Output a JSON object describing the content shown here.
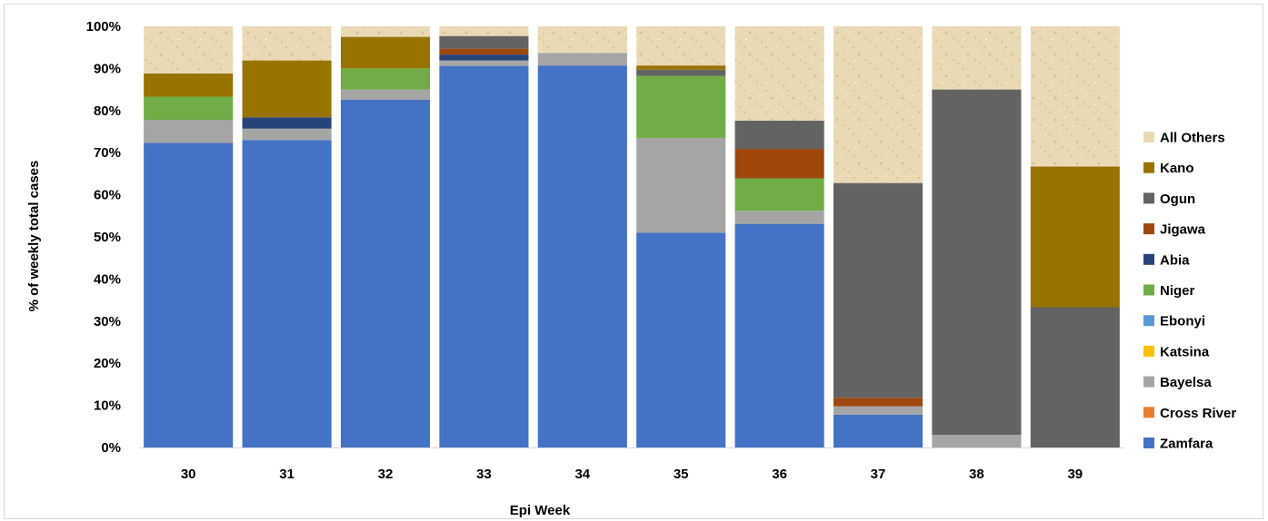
{
  "chart_data": {
    "type": "bar",
    "stacked": true,
    "percent_stacked": true,
    "xlabel": "Epi Week",
    "ylabel": "% of weekly total cases",
    "ylim": [
      0,
      100
    ],
    "y_ticks": [
      "0%",
      "10%",
      "20%",
      "30%",
      "40%",
      "50%",
      "60%",
      "70%",
      "80%",
      "90%",
      "100%"
    ],
    "categories": [
      "30",
      "31",
      "32",
      "33",
      "34",
      "35",
      "36",
      "37",
      "38",
      "39"
    ],
    "legend_position": "right",
    "grid": false,
    "series": [
      {
        "name": "Zamfara",
        "color": "#4472C4",
        "values": [
          72.3,
          73.0,
          82.6,
          90.6,
          90.7,
          51.0,
          53.1,
          7.8,
          0.0,
          0.0
        ]
      },
      {
        "name": "Cross River",
        "color": "#ED7D31",
        "values": [
          0,
          0,
          0,
          0,
          0,
          0,
          0,
          0,
          0,
          0
        ]
      },
      {
        "name": "Bayelsa",
        "color": "#A5A5A5",
        "values": [
          5.5,
          2.7,
          2.4,
          1.3,
          3.0,
          22.5,
          3.1,
          2.0,
          3.0,
          0.0
        ]
      },
      {
        "name": "Katsina",
        "color": "#FFC000",
        "values": [
          0,
          0,
          0,
          0,
          0,
          0,
          0,
          0,
          0,
          0
        ]
      },
      {
        "name": "Ebonyi",
        "color": "#5B9BD5",
        "values": [
          0,
          0,
          0,
          0,
          0,
          0,
          0,
          0,
          0,
          0
        ]
      },
      {
        "name": "Niger",
        "color": "#70AD47",
        "values": [
          5.5,
          0.0,
          5.0,
          0.0,
          0.0,
          14.7,
          7.7,
          0.0,
          0.0,
          0.0
        ]
      },
      {
        "name": "Abia",
        "color": "#264478",
        "values": [
          0.0,
          2.7,
          0.0,
          1.4,
          0.0,
          0.0,
          0.0,
          0.0,
          0.0,
          0.0
        ]
      },
      {
        "name": "Jigawa",
        "color": "#9E480E",
        "values": [
          0.0,
          0.0,
          0.0,
          1.4,
          0.0,
          0.0,
          7.0,
          2.0,
          0.0,
          0.0
        ]
      },
      {
        "name": "Ogun",
        "color": "#636363",
        "values": [
          0.0,
          0.0,
          0.0,
          3.0,
          0.0,
          1.5,
          6.7,
          51.0,
          82.0,
          33.3
        ]
      },
      {
        "name": "Kano",
        "color": "#997300",
        "values": [
          5.5,
          13.5,
          7.5,
          0.0,
          0.0,
          1.0,
          0.0,
          0.0,
          0.0,
          33.4
        ]
      },
      {
        "name": "All Others",
        "color": "#E8D6AE",
        "values": [
          11.2,
          8.1,
          2.5,
          2.3,
          6.3,
          9.3,
          22.4,
          37.2,
          15.0,
          33.3
        ]
      }
    ]
  }
}
